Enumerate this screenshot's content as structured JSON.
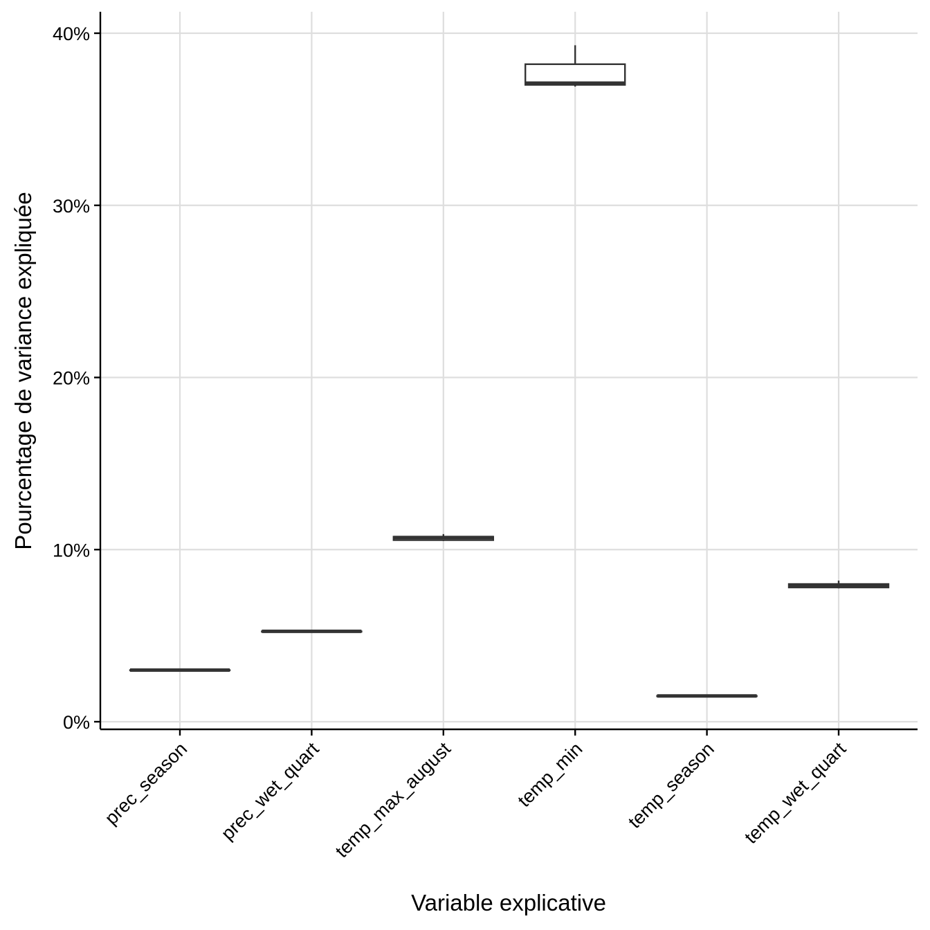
{
  "chart_data": {
    "type": "boxplot",
    "title": "",
    "xlabel": "Variable explicative",
    "ylabel": "Pourcentage de variance expliquée",
    "ylim": [
      -0.5,
      41.2
    ],
    "yticks": [
      0,
      10,
      20,
      30,
      40
    ],
    "ytick_labels": [
      "0%",
      "10%",
      "20%",
      "30%",
      "40%"
    ],
    "categories": [
      "prec_season",
      "prec_wet_quart",
      "temp_max_august",
      "temp_min",
      "temp_season",
      "temp_wet_quart"
    ],
    "boxes": [
      {
        "category": "prec_season",
        "min": 3.0,
        "q1": 3.0,
        "median": 3.0,
        "q3": 3.0,
        "max": 3.0
      },
      {
        "category": "prec_wet_quart",
        "min": 5.25,
        "q1": 5.25,
        "median": 5.25,
        "q3": 5.25,
        "max": 5.25
      },
      {
        "category": "temp_max_august",
        "min": 10.5,
        "q1": 10.55,
        "median": 10.7,
        "q3": 10.75,
        "max": 10.9
      },
      {
        "category": "temp_min",
        "min": 36.9,
        "q1": 37.0,
        "median": 37.1,
        "q3": 38.2,
        "max": 39.3
      },
      {
        "category": "temp_season",
        "min": 1.5,
        "q1": 1.5,
        "median": 1.5,
        "q3": 1.5,
        "max": 1.5
      },
      {
        "category": "temp_wet_quart",
        "min": 7.75,
        "q1": 7.8,
        "median": 7.9,
        "q3": 8.0,
        "max": 8.2
      }
    ],
    "grid": true,
    "colors": {
      "box_stroke": "#333333",
      "box_fill": "#ffffff",
      "grid": "#dedede",
      "axis": "#000000"
    }
  }
}
